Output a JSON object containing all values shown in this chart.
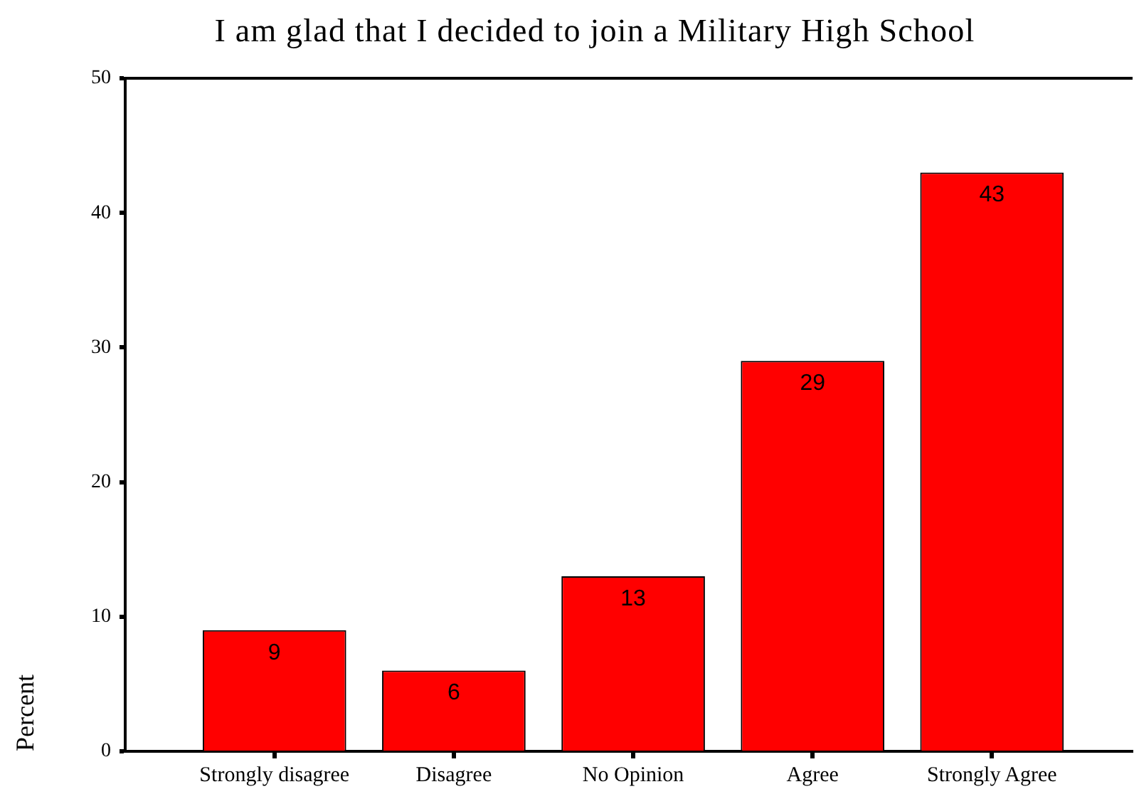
{
  "chart_data": {
    "type": "bar",
    "title": "I am glad that I decided to join a Military High School",
    "ylabel": "Percent",
    "categories": [
      "Strongly disagree",
      "Disagree",
      "No Opinion",
      "Agree",
      "Strongly Agree"
    ],
    "values": [
      9,
      6,
      13,
      29,
      43
    ],
    "color": "#ff0000",
    "ylim": [
      0,
      50
    ],
    "yticks": [
      0,
      10,
      20,
      30,
      40,
      50
    ],
    "data_labels": true
  }
}
